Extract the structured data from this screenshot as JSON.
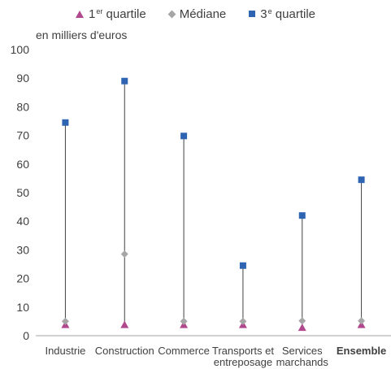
{
  "chart_data": {
    "type": "scatter",
    "unit_label": "en milliers d'euros",
    "categories": [
      "Industrie",
      "Construction",
      "Commerce",
      "Transports et entreposage",
      "Services marchands",
      "Ensemble"
    ],
    "category_bold": [
      false,
      false,
      false,
      false,
      false,
      true
    ],
    "series": [
      {
        "name": "1er quartile",
        "legend_main": "1",
        "legend_sup": "er",
        "legend_rest": "quartile",
        "marker": "triangle",
        "color": "#b1488d",
        "values": [
          3.8,
          3.8,
          3.8,
          3.8,
          2.8,
          3.8
        ]
      },
      {
        "name": "Médiane",
        "legend_main": "Médiane",
        "legend_sup": "",
        "legend_rest": "",
        "marker": "diamond",
        "color": "#a6a6a6",
        "values": [
          5,
          28.5,
          5,
          5,
          5.2,
          5.2
        ]
      },
      {
        "name": "3e quartile",
        "legend_main": "3",
        "legend_sup": "e",
        "legend_rest": "quartile",
        "marker": "square",
        "color": "#2f64b3",
        "values": [
          74.5,
          89,
          69.8,
          24.5,
          42,
          54.5
        ]
      }
    ],
    "ylim": [
      0,
      100
    ],
    "yticks": [
      0,
      10,
      20,
      30,
      40,
      50,
      60,
      70,
      80,
      90,
      100
    ],
    "grid": false,
    "legend_position": "top",
    "range_line_color": "#404040"
  }
}
